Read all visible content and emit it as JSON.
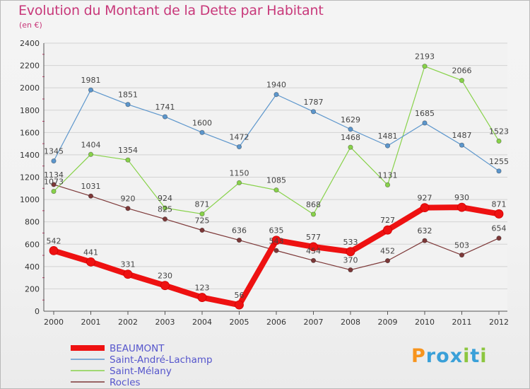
{
  "header": {
    "title": "Evolution du Montant de la Dette par Habitant",
    "subtitle": "(en €)"
  },
  "logo": {
    "letters": [
      "P",
      "r",
      "o",
      "x",
      "i",
      "t",
      "i"
    ],
    "colors": [
      "#f7941d",
      "#3aa0d8",
      "#3aa0d8",
      "#3aa0d8",
      "#8cc63f",
      "#3aa0d8",
      "#8cc63f"
    ]
  },
  "chart_data": {
    "type": "line",
    "title": "Evolution du Montant de la Dette par Habitant",
    "subtitle": "(en €)",
    "x": [
      "2000",
      "2001",
      "2002",
      "2003",
      "2004",
      "2005",
      "2006",
      "2007",
      "2008",
      "2009",
      "2010",
      "2011",
      "2012"
    ],
    "ylim": [
      0,
      2400
    ],
    "yticks": [
      0,
      200,
      400,
      600,
      800,
      1000,
      1200,
      1400,
      1600,
      1800,
      2000,
      2200,
      2400
    ],
    "grid": "horizontal",
    "legend_position": "bottom-left",
    "series": [
      {
        "name": "BEAUMONT",
        "color": "#ee1111",
        "values": [
          542,
          441,
          331,
          230,
          123,
          56,
          635,
          577,
          533,
          727,
          927,
          930,
          871
        ]
      },
      {
        "name": "Saint-André-Lachamp",
        "color": "#5c96cc",
        "values": [
          1345,
          1981,
          1851,
          1741,
          1600,
          1472,
          1940,
          1787,
          1629,
          1481,
          1685,
          1487,
          1255
        ]
      },
      {
        "name": "Saint-Mélany",
        "color": "#88d24a",
        "values": [
          1073,
          1404,
          1354,
          924,
          871,
          1150,
          1085,
          868,
          1468,
          1131,
          2193,
          2066,
          1523
        ]
      },
      {
        "name": "Rocles",
        "color": "#7d3838",
        "values": [
          1134,
          1031,
          920,
          825,
          725,
          636,
          543,
          454,
          370,
          452,
          632,
          503,
          654
        ]
      }
    ]
  }
}
